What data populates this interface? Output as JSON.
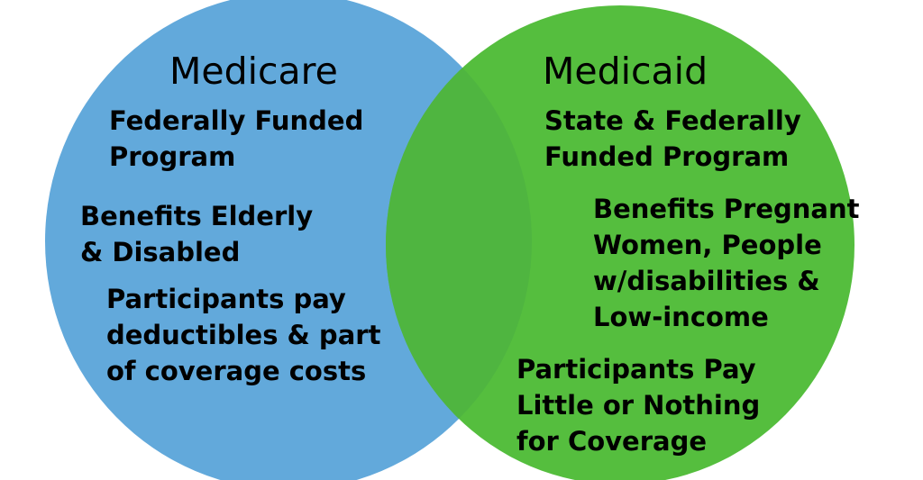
{
  "colors": {
    "left_circle": "#62A9DB",
    "right_circle": "#55BE3E",
    "overlap": "#4FB540",
    "text": "#000000"
  },
  "left": {
    "title": "Medicare",
    "items": [
      "Federally Funded\nProgram",
      "Benefits Elderly\n& Disabled",
      "Participants pay\ndeductibles & part\nof coverage costs"
    ]
  },
  "right": {
    "title": "Medicaid",
    "items": [
      "State & Federally\nFunded Program",
      "Benefits Pregnant\nWomen, People\nw/disabilities &\nLow-income",
      "Participants Pay\nLittle or Nothing\nfor Coverage"
    ]
  }
}
